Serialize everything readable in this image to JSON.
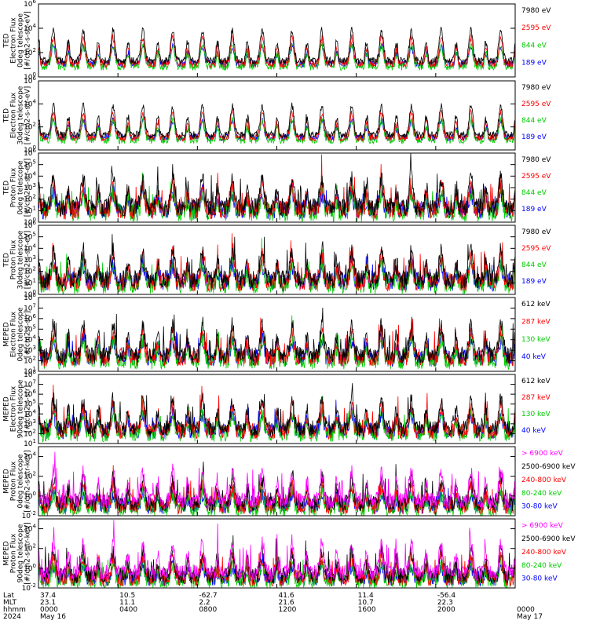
{
  "figure": {
    "colors": {
      "black": "#000000",
      "red": "#ff0000",
      "green": "#00cc00",
      "blue": "#0000ff",
      "magenta": "#ff00ff"
    }
  },
  "chart_data": [
    {
      "type": "line",
      "ylabel": [
        "TED",
        "Electron Flux",
        "0deg telescope",
        "[#/cm2-s-str-eV]"
      ],
      "log": true,
      "yticks": [
        {
          "exp": 0,
          "label": "10^0"
        },
        {
          "exp": 2,
          "label": "10^2"
        },
        {
          "exp": 4,
          "label": "10^4"
        },
        {
          "exp": 6,
          "label": "10^6"
        }
      ],
      "ylim_exp": [
        0,
        6
      ],
      "grid": false,
      "series": [
        {
          "name": "7980 eV",
          "color": "#000000"
        },
        {
          "name": "2595 eV",
          "color": "#ff0000"
        },
        {
          "name": "844 eV",
          "color": "#00cc00"
        },
        {
          "name": "189 eV",
          "color": "#0000ff"
        }
      ]
    },
    {
      "type": "line",
      "ylabel": [
        "TED",
        "Electron Flux",
        "30deg telescope",
        "[#/cm2-s-str-eV]"
      ],
      "log": true,
      "yticks": [
        {
          "exp": 0,
          "label": "10^0"
        },
        {
          "exp": 2,
          "label": "10^2"
        },
        {
          "exp": 4,
          "label": "10^4"
        },
        {
          "exp": 6,
          "label": "10^6"
        }
      ],
      "ylim_exp": [
        0,
        6
      ],
      "grid": false,
      "series": [
        {
          "name": "7980 eV",
          "color": "#000000"
        },
        {
          "name": "2595 eV",
          "color": "#ff0000"
        },
        {
          "name": "844 eV",
          "color": "#00cc00"
        },
        {
          "name": "189 eV",
          "color": "#0000ff"
        }
      ]
    },
    {
      "type": "line",
      "ylabel": [
        "TED",
        "Proton Flux",
        "0deg telescope",
        "[#/cm2-s-str-eV]"
      ],
      "log": true,
      "yticks": [
        {
          "exp": 0,
          "label": "10^0"
        },
        {
          "exp": 1,
          "label": "10^1"
        },
        {
          "exp": 2,
          "label": "10^2"
        },
        {
          "exp": 3,
          "label": "10^3"
        },
        {
          "exp": 4,
          "label": "10^4"
        },
        {
          "exp": 5,
          "label": "10^5"
        },
        {
          "exp": 6,
          "label": "10^6"
        }
      ],
      "ylim_exp": [
        0,
        6
      ],
      "grid": false,
      "series": [
        {
          "name": "7980 eV",
          "color": "#000000"
        },
        {
          "name": "2595 eV",
          "color": "#ff0000"
        },
        {
          "name": "844 eV",
          "color": "#00cc00"
        },
        {
          "name": "189 eV",
          "color": "#0000ff"
        }
      ]
    },
    {
      "type": "line",
      "ylabel": [
        "TED",
        "Proton Flux",
        "30deg telescope",
        "[#/cm2-s-str-eV]"
      ],
      "log": true,
      "yticks": [
        {
          "exp": 0,
          "label": "10^0"
        },
        {
          "exp": 1,
          "label": "10^1"
        },
        {
          "exp": 2,
          "label": "10^2"
        },
        {
          "exp": 3,
          "label": "10^3"
        },
        {
          "exp": 4,
          "label": "10^4"
        },
        {
          "exp": 5,
          "label": "10^5"
        },
        {
          "exp": 6,
          "label": "10^6"
        }
      ],
      "ylim_exp": [
        0,
        6
      ],
      "grid": false,
      "series": [
        {
          "name": "7980 eV",
          "color": "#000000"
        },
        {
          "name": "2595 eV",
          "color": "#ff0000"
        },
        {
          "name": "844 eV",
          "color": "#00cc00"
        },
        {
          "name": "189 eV",
          "color": "#0000ff"
        }
      ]
    },
    {
      "type": "line",
      "ylabel": [
        "MEPED",
        "Electron Flux",
        "0deg telescope",
        "[#/cm2-s-str]"
      ],
      "log": true,
      "yticks": [
        {
          "exp": 1,
          "label": "10^1"
        },
        {
          "exp": 2,
          "label": "10^2"
        },
        {
          "exp": 3,
          "label": "10^3"
        },
        {
          "exp": 4,
          "label": "10^4"
        },
        {
          "exp": 5,
          "label": "10^5"
        },
        {
          "exp": 6,
          "label": "10^6"
        },
        {
          "exp": 7,
          "label": "10^7"
        },
        {
          "exp": 8,
          "label": "10^8"
        }
      ],
      "ylim_exp": [
        1,
        8
      ],
      "grid": false,
      "series": [
        {
          "name": "612 keV",
          "color": "#000000"
        },
        {
          "name": "287 keV",
          "color": "#ff0000"
        },
        {
          "name": "130 keV",
          "color": "#00cc00"
        },
        {
          "name": "40 keV",
          "color": "#0000ff"
        }
      ]
    },
    {
      "type": "line",
      "ylabel": [
        "MEPED",
        "Electron Flux",
        "90deg telescope",
        "[#/cm2-s-str]"
      ],
      "log": true,
      "yticks": [
        {
          "exp": 1,
          "label": "10^1"
        },
        {
          "exp": 2,
          "label": "10^2"
        },
        {
          "exp": 3,
          "label": "10^3"
        },
        {
          "exp": 4,
          "label": "10^4"
        },
        {
          "exp": 5,
          "label": "10^5"
        },
        {
          "exp": 6,
          "label": "10^6"
        },
        {
          "exp": 7,
          "label": "10^7"
        },
        {
          "exp": 8,
          "label": "10^8"
        }
      ],
      "ylim_exp": [
        1,
        8
      ],
      "grid": false,
      "series": [
        {
          "name": "612 keV",
          "color": "#000000"
        },
        {
          "name": "287 keV",
          "color": "#ff0000"
        },
        {
          "name": "130 keV",
          "color": "#00cc00"
        },
        {
          "name": "40 keV",
          "color": "#0000ff"
        }
      ]
    },
    {
      "type": "line",
      "ylabel": [
        "MEPED",
        "Proton Flux",
        "0deg telescope",
        "[#/cm2-s-str-keV]"
      ],
      "log": true,
      "yticks": [
        {
          "exp": -2,
          "label": "10^-2"
        },
        {
          "exp": 0,
          "label": "10^0"
        },
        {
          "exp": 2,
          "label": "10^2"
        },
        {
          "exp": 4,
          "label": "10^4"
        }
      ],
      "ylim_exp": [
        -2,
        5
      ],
      "grid": false,
      "series": [
        {
          "name": "> 6900 keV",
          "color": "#ff00ff"
        },
        {
          "name": "2500-6900 keV",
          "color": "#000000"
        },
        {
          "name": "240-800 keV",
          "color": "#ff0000"
        },
        {
          "name": "80-240 keV",
          "color": "#00cc00"
        },
        {
          "name": "30-80 keV",
          "color": "#0000ff"
        }
      ]
    },
    {
      "type": "line",
      "ylabel": [
        "MEPED",
        "Proton Flux",
        "90deg telescope",
        "[#/cm2-s-str-keV]"
      ],
      "log": true,
      "yticks": [
        {
          "exp": -2,
          "label": "10^-2"
        },
        {
          "exp": 0,
          "label": "10^0"
        },
        {
          "exp": 2,
          "label": "10^2"
        },
        {
          "exp": 4,
          "label": "10^4"
        }
      ],
      "ylim_exp": [
        -2,
        5
      ],
      "grid": false,
      "series": [
        {
          "name": "> 6900 keV",
          "color": "#ff00ff"
        },
        {
          "name": "2500-6900 keV",
          "color": "#000000"
        },
        {
          "name": "240-800 keV",
          "color": "#ff0000"
        },
        {
          "name": "80-240 keV",
          "color": "#00cc00"
        },
        {
          "name": "30-80 keV",
          "color": "#0000ff"
        }
      ]
    }
  ],
  "x_axis": {
    "row_labels": [
      "Lat",
      "MLT",
      "hhmm",
      "2024"
    ],
    "ticks": [
      {
        "lat": "37.4",
        "mlt": "23.1",
        "hhmm": "0000",
        "date": "May 16"
      },
      {
        "lat": "10.5",
        "mlt": "11.1",
        "hhmm": "0400",
        "date": ""
      },
      {
        "lat": "-62.7",
        "mlt": "2.2",
        "hhmm": "0800",
        "date": ""
      },
      {
        "lat": "41.6",
        "mlt": "21.6",
        "hhmm": "1200",
        "date": ""
      },
      {
        "lat": "11.4",
        "mlt": "10.7",
        "hhmm": "1600",
        "date": ""
      },
      {
        "lat": "-56.4",
        "mlt": "22.3",
        "hhmm": "2000",
        "date": ""
      },
      {
        "lat": "",
        "mlt": "",
        "hhmm": "0000",
        "date": "May 17"
      }
    ]
  }
}
